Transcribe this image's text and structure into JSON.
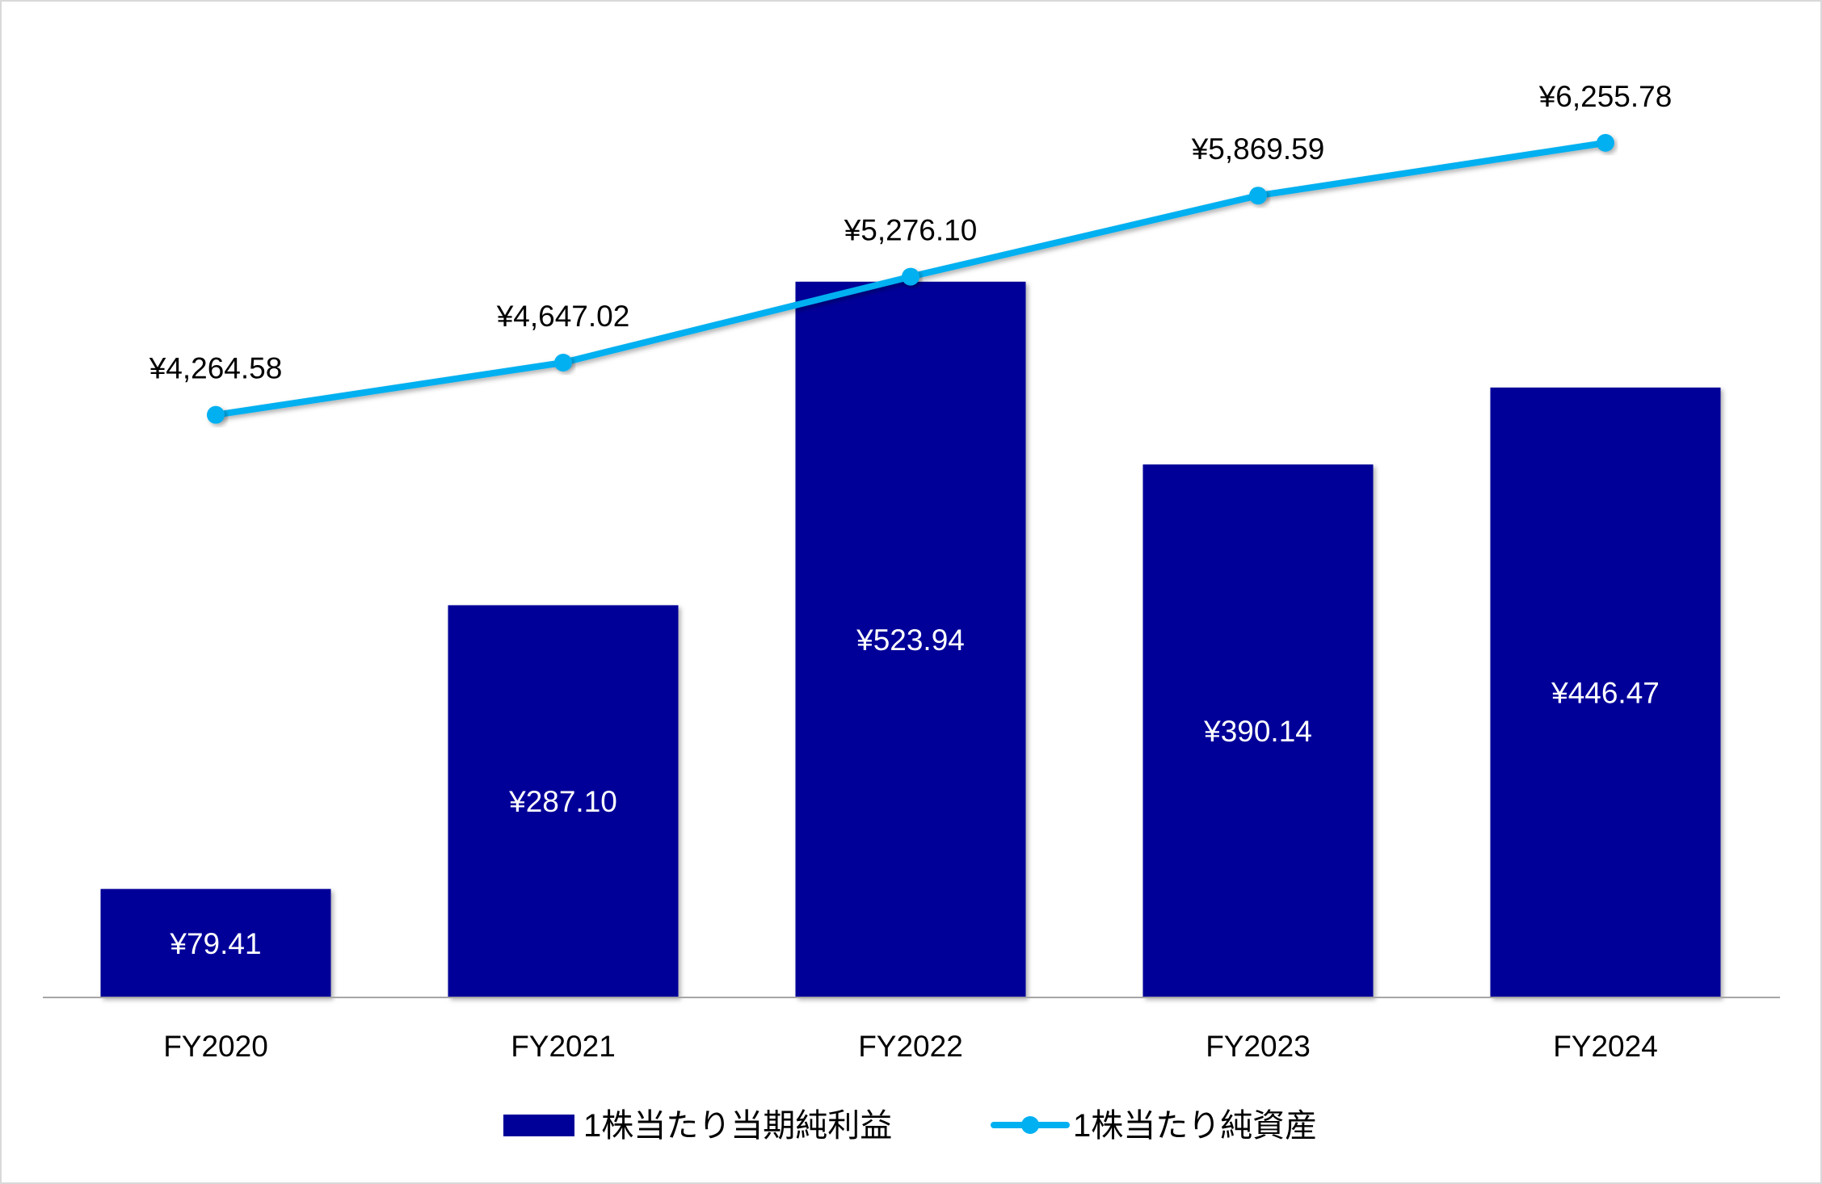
{
  "chart_data": {
    "type": "bar",
    "title": "",
    "categories": [
      "FY2020",
      "FY2021",
      "FY2022",
      "FY2023",
      "FY2024"
    ],
    "series": [
      {
        "name": "1株当たり当期純利益",
        "type": "bar",
        "axis": "primary",
        "color": "#000099",
        "values": [
          79.41,
          287.1,
          523.94,
          390.14,
          446.47
        ],
        "labels": [
          "¥79.41",
          "¥287.10",
          "¥523.94",
          "¥390.14",
          "¥446.47"
        ]
      },
      {
        "name": "1株当たり純資産",
        "type": "line",
        "axis": "secondary",
        "color": "#00B0F0",
        "values": [
          4264.58,
          4647.02,
          5276.1,
          5869.59,
          6255.78
        ],
        "labels": [
          "¥4,264.58",
          "¥4,647.02",
          "¥5,276.10",
          "¥5,869.59",
          "¥6,255.78"
        ]
      }
    ],
    "ylim": [
      0,
      700
    ],
    "y2lim": [
      0,
      7000
    ],
    "xlabel": "",
    "ylabel": "",
    "grid": false,
    "legend_position": "bottom"
  }
}
